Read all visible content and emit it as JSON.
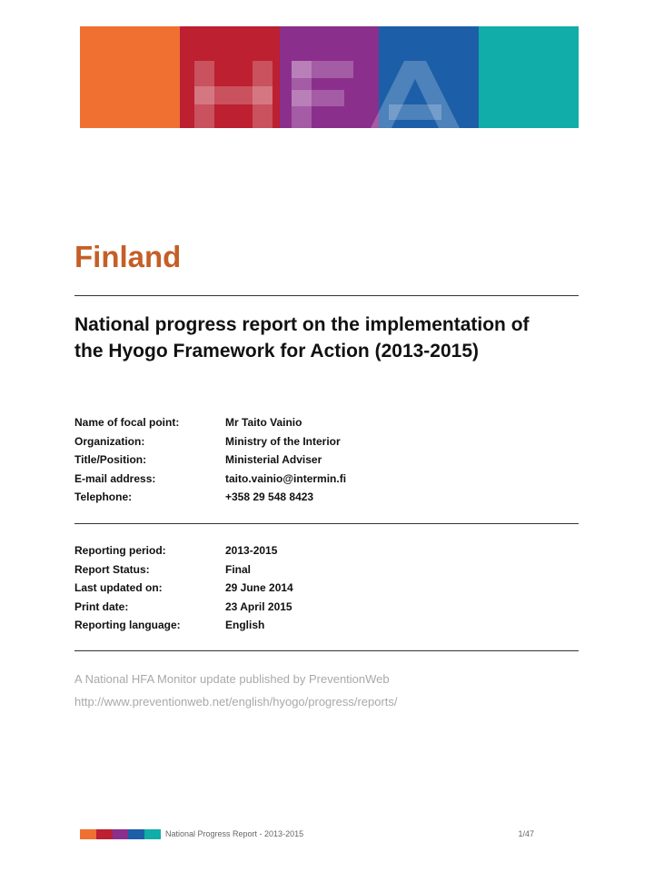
{
  "colors": {
    "banner": [
      "#f07031",
      "#bc2031",
      "#8b2f8c",
      "#1c5fa8",
      "#11ada8"
    ],
    "country_title": "#c45f27"
  },
  "header": {
    "logo_text": "HFA"
  },
  "document": {
    "country": "Finland",
    "title_line1": "National progress report on the implementation of",
    "title_line2": "the Hyogo Framework for Action (2013-2015)"
  },
  "contact": [
    {
      "label": "Name of focal point:",
      "value": "Mr Taito Vainio"
    },
    {
      "label": "Organization:",
      "value": "Ministry of the Interior"
    },
    {
      "label": "Title/Position:",
      "value": "Ministerial Adviser"
    },
    {
      "label": "E-mail address:",
      "value": "taito.vainio@intermin.fi"
    },
    {
      "label": "Telephone:",
      "value": "+358 29 548 8423"
    }
  ],
  "report": [
    {
      "label": "Reporting period:",
      "value": "2013-2015"
    },
    {
      "label": "Report Status:",
      "value": "Final"
    },
    {
      "label": "Last updated on:",
      "value": "29 June 2014"
    },
    {
      "label": "Print date:",
      "value": "23 April 2015"
    },
    {
      "label": "Reporting language:",
      "value": "English"
    }
  ],
  "publication": {
    "line1": "A National HFA Monitor update published by PreventionWeb",
    "line2": "http://www.preventionweb.net/english/hyogo/progress/reports/"
  },
  "footer": {
    "title": "National Progress Report - 2013-2015",
    "page": "1/47"
  }
}
